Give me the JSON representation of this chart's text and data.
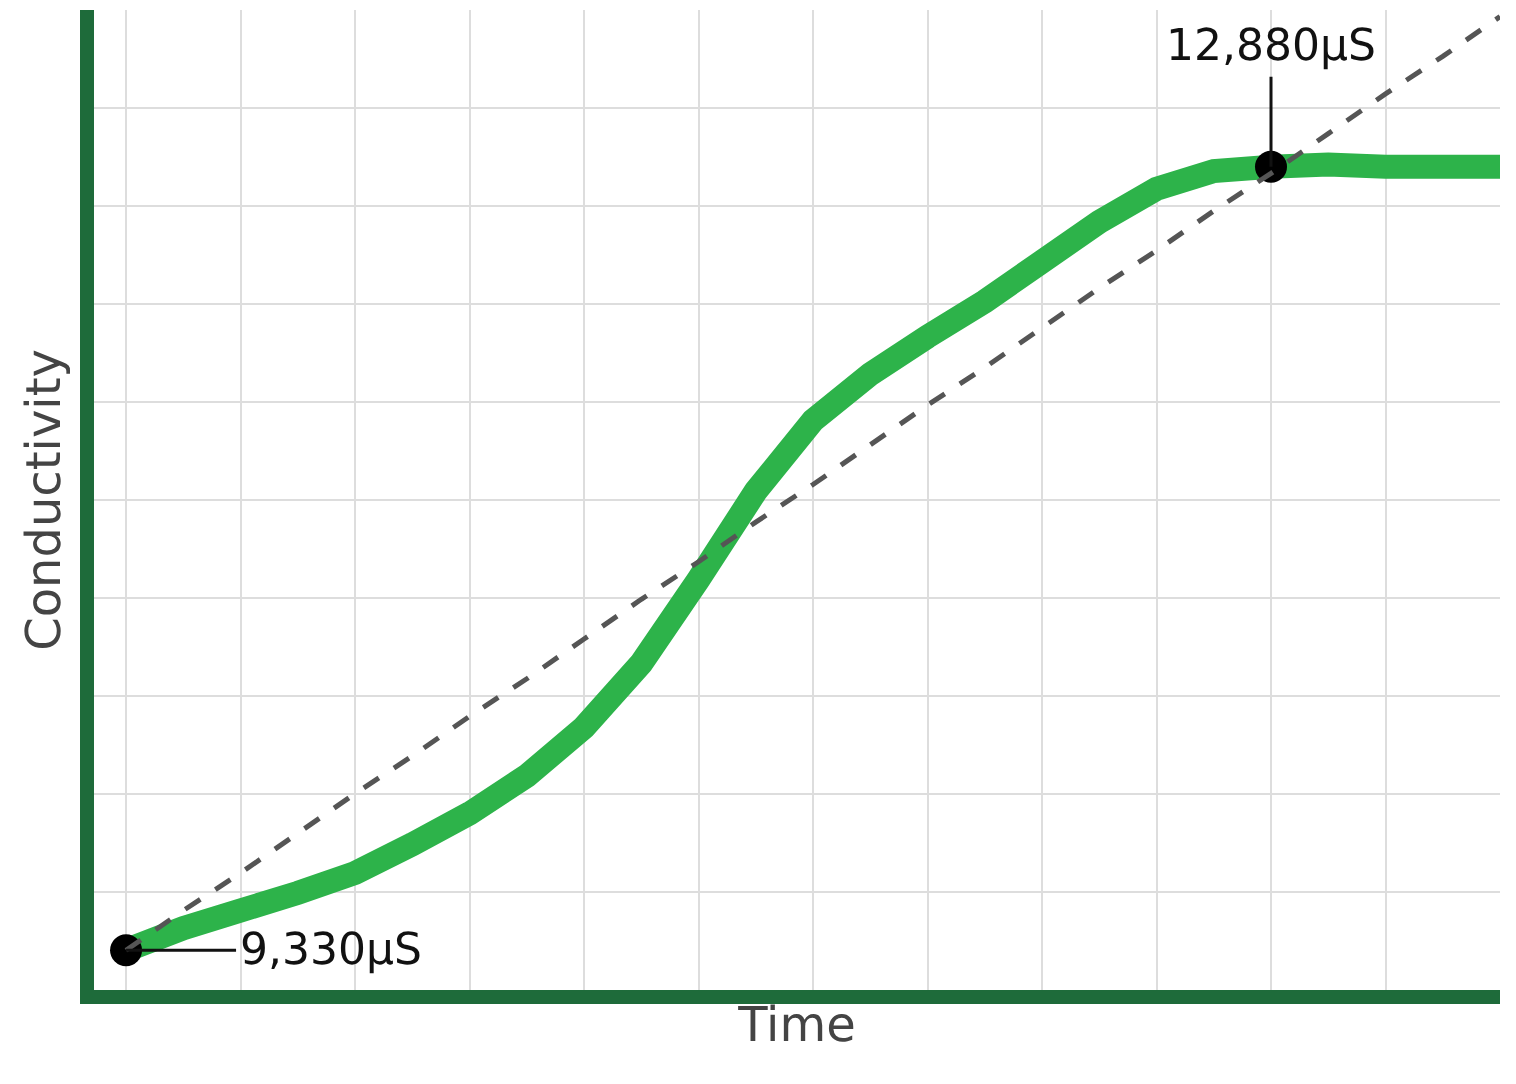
{
  "chart_data": {
    "type": "line",
    "grid": true,
    "tick_labels": false,
    "xlabel": "Time",
    "ylabel": "Conductivity",
    "ylim": [
      9150,
      13590
    ],
    "categories": [
      null,
      null,
      null,
      null,
      null,
      null,
      null,
      null,
      null,
      null,
      null,
      null,
      null,
      null,
      null,
      null,
      null,
      null,
      null,
      null,
      null,
      null,
      null,
      null,
      null
    ],
    "series": [
      {
        "color": "#2db34a",
        "line_style": "solid",
        "values": [
          9330,
          9430,
          9510,
          9590,
          9680,
          9810,
          9950,
          10120,
          10340,
          10630,
          11010,
          11410,
          11730,
          11940,
          12110,
          12270,
          12450,
          12630,
          12780,
          12860,
          12880,
          12890,
          12880,
          12880,
          12880
        ],
        "value_labels": [
          "9,330µS",
          null,
          null,
          null,
          null,
          null,
          null,
          null,
          null,
          null,
          null,
          null,
          null,
          null,
          null,
          null,
          null,
          null,
          null,
          null,
          "12,880µS",
          null,
          null,
          null,
          null
        ]
      },
      {
        "color": "#555555",
        "line_style": "dashed",
        "values": [
          9330,
          9510,
          9680,
          9860,
          10040,
          10210,
          10390,
          10560,
          10740,
          10920,
          11090,
          11270,
          11440,
          11620,
          11800,
          11970,
          12150,
          12330,
          12500,
          12680,
          12850,
          13030,
          13210,
          13380,
          13560
        ]
      }
    ]
  }
}
